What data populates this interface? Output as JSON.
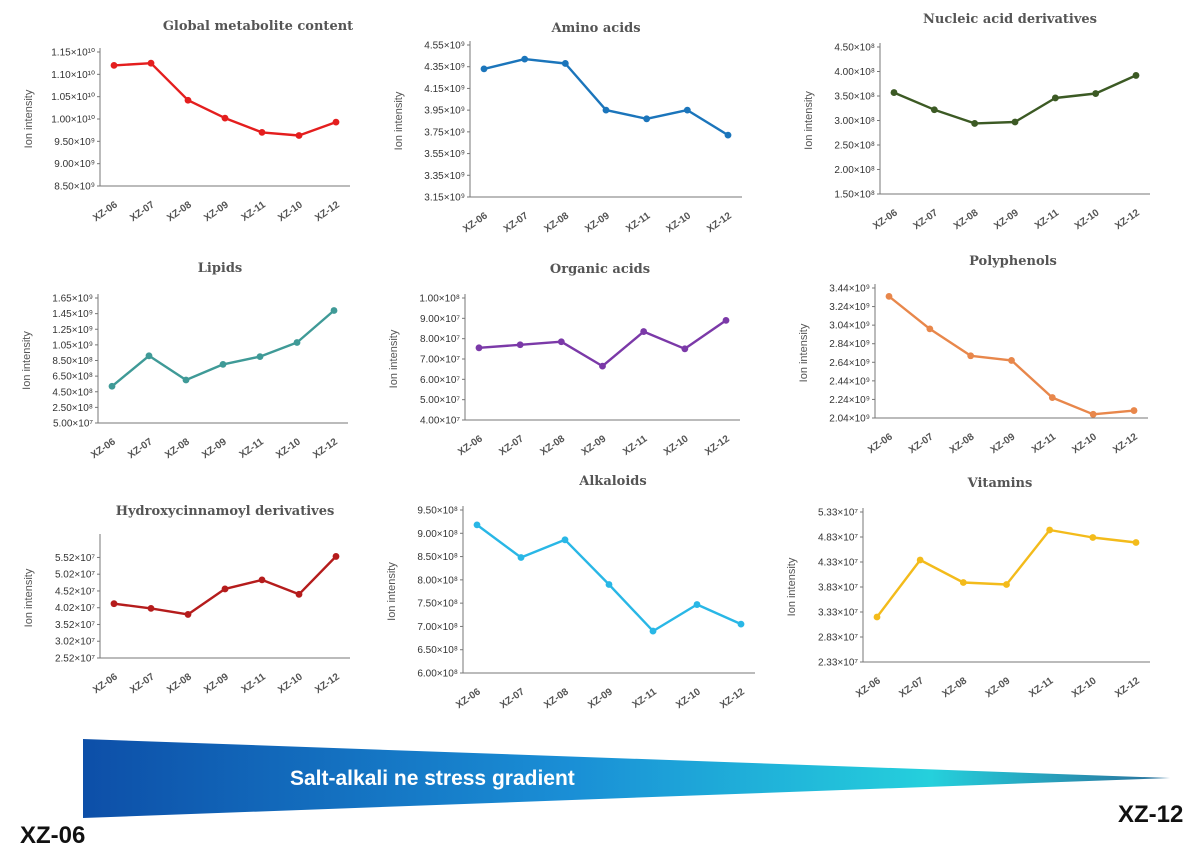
{
  "chart_data": [
    {
      "type": "line",
      "title": "Global metabolite content",
      "ylabel": "Ion intensity",
      "categories": [
        "XZ-06",
        "XZ-07",
        "XZ-08",
        "XZ-09",
        "XZ-11",
        "XZ-10",
        "XZ-12"
      ],
      "values": [
        11200000000.0,
        11250000000.0,
        10420000000.0,
        10020000000.0,
        9700000000.0,
        9630000000.0,
        9930000000.0
      ],
      "ylim": [
        8500000000.0,
        11500000000.0
      ],
      "yticks": [
        8500000000.0,
        9000000000.0,
        9500000000.0,
        10000000000.0,
        10500000000.0,
        11000000000.0,
        11500000000.0
      ],
      "ytick_labels": [
        "8.50×10⁹",
        "9.00×10⁹",
        "9.50×10⁹",
        "1.00×10¹⁰",
        "1.05×10¹⁰",
        "1.10×10¹⁰",
        "1.15×10¹⁰"
      ],
      "color": "#e41e1e"
    },
    {
      "type": "line",
      "title": "Amino acids",
      "ylabel": "Ion intensity",
      "categories": [
        "XZ-06",
        "XZ-07",
        "XZ-08",
        "XZ-09",
        "XZ-11",
        "XZ-10",
        "XZ-12"
      ],
      "values": [
        4330000000.0,
        4420000000.0,
        4380000000.0,
        3950000000.0,
        3870000000.0,
        3950000000.0,
        3720000000.0
      ],
      "ylim": [
        3150000000.0,
        4550000000.0
      ],
      "yticks": [
        3150000000.0,
        3350000000.0,
        3550000000.0,
        3750000000.0,
        3950000000.0,
        4150000000.0,
        4350000000.0,
        4550000000.0
      ],
      "ytick_labels": [
        "3.15×10⁹",
        "3.35×10⁹",
        "3.55×10⁹",
        "3.75×10⁹",
        "3.95×10⁹",
        "4.15×10⁹",
        "4.35×10⁹",
        "4.55×10⁹"
      ],
      "color": "#1b75bb"
    },
    {
      "type": "line",
      "title": "Nucleic acid derivatives",
      "ylabel": "Ion intensity",
      "categories": [
        "XZ-06",
        "XZ-07",
        "XZ-08",
        "XZ-09",
        "XZ-11",
        "XZ-10",
        "XZ-12"
      ],
      "values": [
        357000000.0,
        322000000.0,
        294000000.0,
        297000000.0,
        346000000.0,
        355000000.0,
        392000000.0
      ],
      "ylim": [
        150000000.0,
        450000000.0
      ],
      "yticks": [
        150000000.0,
        200000000.0,
        250000000.0,
        300000000.0,
        350000000.0,
        400000000.0,
        450000000.0
      ],
      "ytick_labels": [
        "1.50×10⁸",
        "2.00×10⁸",
        "2.50×10⁸",
        "3.00×10⁸",
        "3.50×10⁸",
        "4.00×10⁸",
        "4.50×10⁸"
      ],
      "color": "#3c5a24"
    },
    {
      "type": "line",
      "title": "Lipids",
      "ylabel": "Ion intensity",
      "categories": [
        "XZ-06",
        "XZ-07",
        "XZ-08",
        "XZ-09",
        "XZ-11",
        "XZ-10",
        "XZ-12"
      ],
      "values": [
        520000000.0,
        910000000.0,
        600000000.0,
        800000000.0,
        900000000.0,
        1080000000.0,
        1490000000.0
      ],
      "ylim": [
        50000000.0,
        1650000000.0
      ],
      "yticks": [
        50000000.0,
        250000000.0,
        450000000.0,
        650000000.0,
        850000000.0,
        1050000000.0,
        1250000000.0,
        1450000000.0,
        1650000000.0
      ],
      "ytick_labels": [
        "5.00×10⁷",
        "2.50×10⁸",
        "4.50×10⁸",
        "6.50×10⁸",
        "8.50×10⁸",
        "1.05×10⁹",
        "1.25×10⁹",
        "1.45×10⁹",
        "1.65×10⁹"
      ],
      "color": "#3f9a97"
    },
    {
      "type": "line",
      "title": "Organic acids",
      "ylabel": "Ion intensity",
      "categories": [
        "XZ-06",
        "XZ-07",
        "XZ-08",
        "XZ-09",
        "XZ-11",
        "XZ-10",
        "XZ-12"
      ],
      "values": [
        75500000.0,
        77000000.0,
        78500000.0,
        66500000.0,
        83500000.0,
        75000000.0,
        89000000.0
      ],
      "ylim": [
        40000000.0,
        100000000.0
      ],
      "yticks": [
        40000000.0,
        50000000.0,
        60000000.0,
        70000000.0,
        80000000.0,
        90000000.0,
        100000000.0
      ],
      "ytick_labels": [
        "4.00×10⁷",
        "5.00×10⁷",
        "6.00×10⁷",
        "7.00×10⁷",
        "8.00×10⁷",
        "9.00×10⁷",
        "1.00×10⁸"
      ],
      "color": "#7b39a8"
    },
    {
      "type": "line",
      "title": "Polyphenols",
      "ylabel": "Ion intensity",
      "categories": [
        "XZ-06",
        "XZ-07",
        "XZ-08",
        "XZ-09",
        "XZ-11",
        "XZ-10",
        "XZ-12"
      ],
      "values": [
        3350000000.0,
        3000000000.0,
        2710000000.0,
        2660000000.0,
        2260000000.0,
        2080000000.0,
        2120000000.0
      ],
      "ylim": [
        2040000000.0,
        3440000000.0
      ],
      "yticks": [
        2040000000.0,
        2240000000.0,
        2440000000.0,
        2640000000.0,
        2840000000.0,
        3040000000.0,
        3240000000.0,
        3440000000.0
      ],
      "ytick_labels": [
        "2.04×10⁹",
        "2.24×10⁹",
        "2.44×10⁹",
        "2.64×10⁹",
        "2.84×10⁹",
        "3.04×10⁹",
        "3.24×10⁹",
        "3.44×10⁹"
      ],
      "color": "#e8874b"
    },
    {
      "type": "line",
      "title": "Hydroxycinnamoyl derivatives",
      "ylabel": "Ion intensity",
      "categories": [
        "XZ-06",
        "XZ-07",
        "XZ-08",
        "XZ-09",
        "XZ-11",
        "XZ-10",
        "XZ-12"
      ],
      "values": [
        41400000.0,
        40000000.0,
        38200000.0,
        45800000.0,
        48500000.0,
        44200000.0,
        55500000.0
      ],
      "ylim": [
        25200000.0,
        61000000.0
      ],
      "yticks": [
        25200000.0,
        30200000.0,
        35200000.0,
        40200000.0,
        45200000.0,
        50200000.0,
        55200000.0
      ],
      "ytick_labels": [
        "2.52×10⁷",
        "3.02×10⁷",
        "3.52×10⁷",
        "4.02×10⁷",
        "4.52×10⁷",
        "5.02×10⁷",
        "5.52×10⁷"
      ],
      "color": "#b51c1c"
    },
    {
      "type": "line",
      "title": "Alkaloids",
      "ylabel": "Ion intensity",
      "categories": [
        "XZ-06",
        "XZ-07",
        "XZ-08",
        "XZ-09",
        "XZ-11",
        "XZ-10",
        "XZ-12"
      ],
      "values": [
        918000000.0,
        848000000.0,
        886000000.0,
        790000000.0,
        690000000.0,
        747000000.0,
        705000000.0
      ],
      "ylim": [
        600000000.0,
        950000000.0
      ],
      "yticks": [
        600000000.0,
        650000000.0,
        700000000.0,
        750000000.0,
        800000000.0,
        850000000.0,
        900000000.0,
        950000000.0
      ],
      "ytick_labels": [
        "6.00×10⁸",
        "6.50×10⁸",
        "7.00×10⁸",
        "7.50×10⁸",
        "8.00×10⁸",
        "8.50×10⁸",
        "9.00×10⁸",
        "9.50×10⁸"
      ],
      "color": "#29b7e6"
    },
    {
      "type": "line",
      "title": "Vitamins",
      "ylabel": "Ion intensity",
      "categories": [
        "XZ-06",
        "XZ-07",
        "XZ-08",
        "XZ-09",
        "XZ-11",
        "XZ-10",
        "XZ-12"
      ],
      "values": [
        32300000.0,
        43700000.0,
        39200000.0,
        38800000.0,
        49700000.0,
        48200000.0,
        47200000.0
      ],
      "ylim": [
        23300000.0,
        53300000.0
      ],
      "yticks": [
        23300000.0,
        28300000.0,
        33300000.0,
        38300000.0,
        43300000.0,
        48300000.0,
        53300000.0
      ],
      "ytick_labels": [
        "2.33×10⁷",
        "2.83×10⁷",
        "3.33×10⁷",
        "3.83×10⁷",
        "4.33×10⁷",
        "4.83×10⁷",
        "5.33×10⁷"
      ],
      "color": "#f3bb1b"
    }
  ],
  "gradient": {
    "label": "Salt-alkali ne stress gradient",
    "start_label": "XZ-06",
    "end_label": "XZ-12"
  }
}
